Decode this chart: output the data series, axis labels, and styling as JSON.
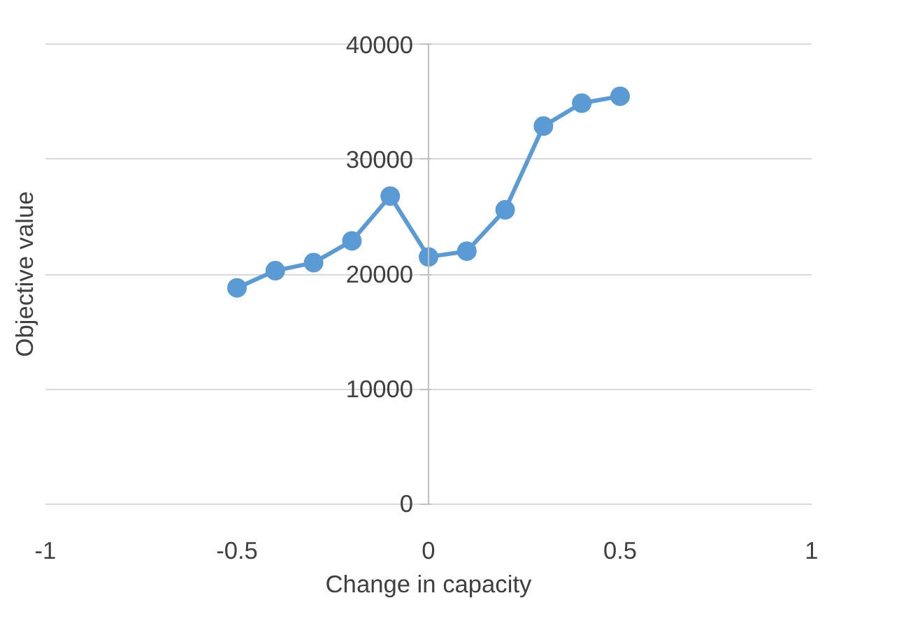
{
  "chart_data": {
    "type": "line",
    "xlabel": "Change in capacity",
    "ylabel": "Objective value",
    "x": [
      -0.5,
      -0.4,
      -0.3,
      -0.2,
      -0.1,
      0,
      0.1,
      0.2,
      0.3,
      0.4,
      0.5
    ],
    "series": [
      {
        "color": "#5b9bd5",
        "values": [
          18800,
          20300,
          21000,
          22900,
          26800,
          21500,
          22000,
          25600,
          32900,
          34900,
          35500
        ]
      }
    ],
    "xlim": [
      -1,
      1
    ],
    "xticks": [
      -1,
      -0.5,
      0,
      0.5,
      1
    ],
    "ylim": [
      0,
      40000
    ],
    "yticks": [
      0,
      10000,
      20000,
      30000,
      40000
    ],
    "grid": "y",
    "marker": "circle",
    "line_style": "solid"
  }
}
